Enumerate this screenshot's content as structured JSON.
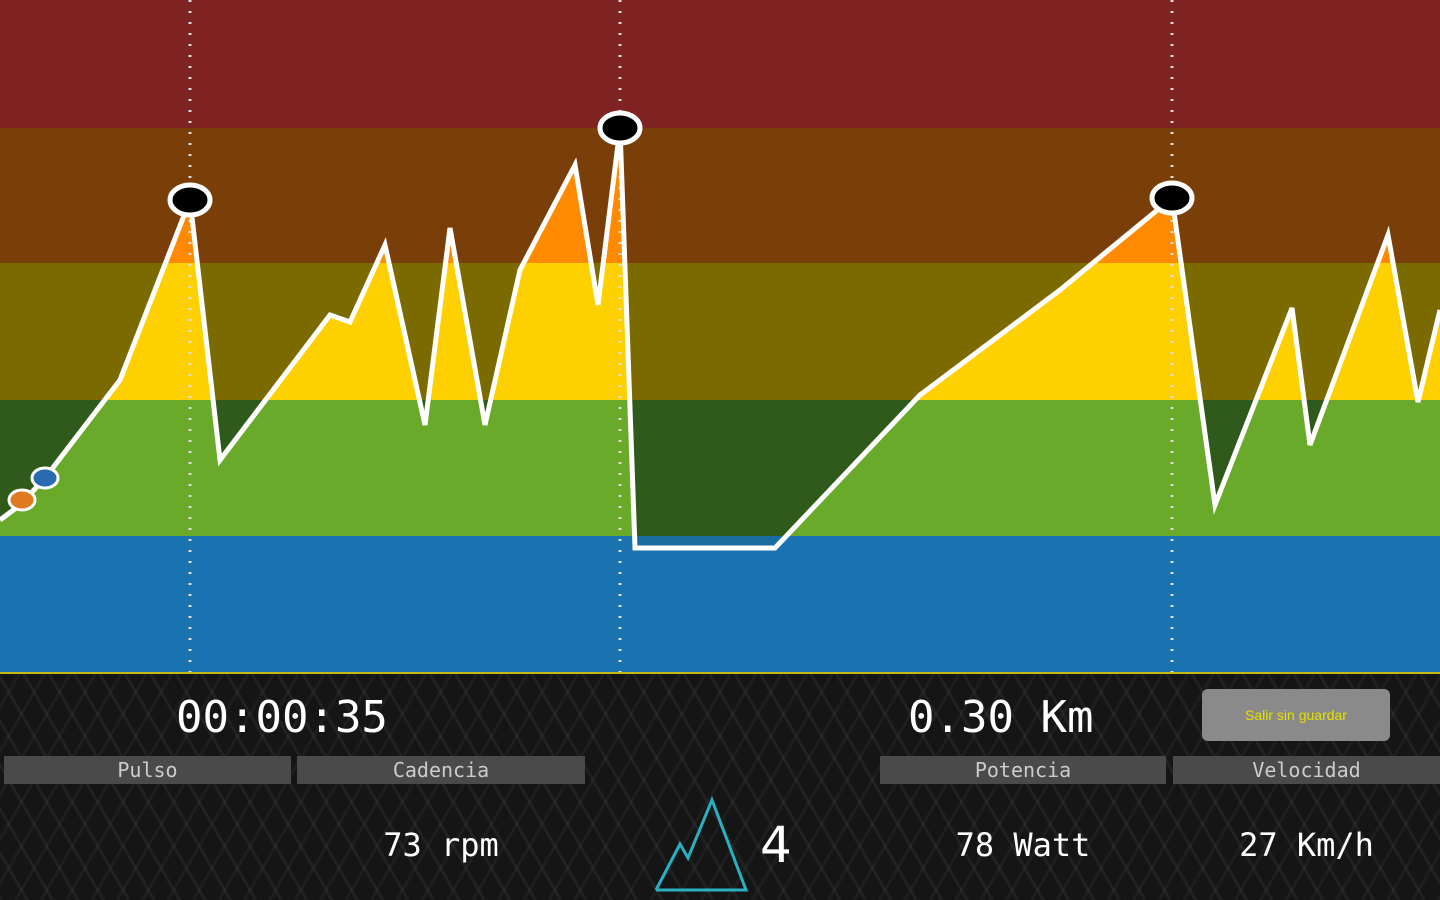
{
  "colors": {
    "zone_red": "#7f2222",
    "zone_orange_dark": "#7a3e08",
    "zone_yellow_dark": "#7a6a00",
    "zone_green_dark": "#2f5a1c",
    "zone_blue_dark": "#1a6ba0",
    "fill_orange": "#ff8a00",
    "fill_yellow": "#ffd000",
    "fill_green": "#6aaa2a",
    "fill_blue": "#1a73b0",
    "accent": "#c8b820"
  },
  "stats": {
    "time": "00:00:35",
    "distance": "0.30 Km",
    "level": "4"
  },
  "exit_button": "Salir sin guardar",
  "metrics": [
    {
      "label": "Pulso",
      "value": ""
    },
    {
      "label": "Cadencia",
      "value": "73 rpm"
    },
    {
      "label": "Potencia",
      "value": "78 Watt"
    },
    {
      "label": "Velocidad",
      "value": "27 Km/h"
    }
  ],
  "icons": {
    "level": "mountain-icon"
  }
}
